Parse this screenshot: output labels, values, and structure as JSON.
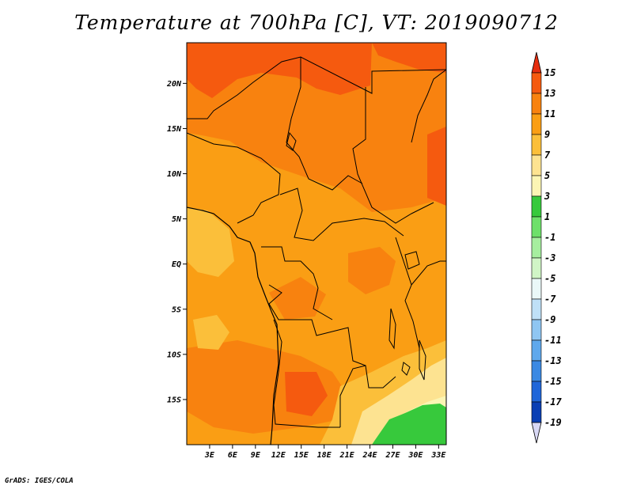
{
  "title": "Temperature at 700hPa [C], VT: 2019090712",
  "footer": "GrADS: IGES/COLA",
  "map": {
    "region": "Central Africa",
    "lat_range": [
      -20,
      24.5
    ],
    "lon_range": [
      0,
      34
    ],
    "lat_ticks": [
      {
        "label": "20N",
        "value": 20
      },
      {
        "label": "15N",
        "value": 15
      },
      {
        "label": "10N",
        "value": 10
      },
      {
        "label": "5N",
        "value": 5
      },
      {
        "label": "EQ",
        "value": 0
      },
      {
        "label": "5S",
        "value": -5
      },
      {
        "label": "10S",
        "value": -10
      },
      {
        "label": "15S",
        "value": -15
      }
    ],
    "lon_ticks": [
      {
        "label": "3E",
        "value": 3
      },
      {
        "label": "6E",
        "value": 6
      },
      {
        "label": "9E",
        "value": 9
      },
      {
        "label": "12E",
        "value": 12
      },
      {
        "label": "15E",
        "value": 15
      },
      {
        "label": "18E",
        "value": 18
      },
      {
        "label": "21E",
        "value": 21
      },
      {
        "label": "24E",
        "value": 24
      },
      {
        "label": "27E",
        "value": 27
      },
      {
        "label": "30E",
        "value": 30
      },
      {
        "label": "33E",
        "value": 33
      }
    ]
  },
  "colorbar": {
    "levels": [
      {
        "label": "15",
        "value": 15
      },
      {
        "label": "13",
        "value": 13
      },
      {
        "label": "11",
        "value": 11
      },
      {
        "label": "9",
        "value": 9
      },
      {
        "label": "7",
        "value": 7
      },
      {
        "label": "5",
        "value": 5
      },
      {
        "label": "3",
        "value": 3
      },
      {
        "label": "1",
        "value": 1
      },
      {
        "label": "-1",
        "value": -1
      },
      {
        "label": "-3",
        "value": -3
      },
      {
        "label": "-5",
        "value": -5
      },
      {
        "label": "-7",
        "value": -7
      },
      {
        "label": "-9",
        "value": -9
      },
      {
        "label": "-11",
        "value": -11
      },
      {
        "label": "-13",
        "value": -13
      },
      {
        "label": "-15",
        "value": -15
      },
      {
        "label": "-17",
        "value": -17
      },
      {
        "label": "-19",
        "value": -19
      }
    ],
    "colors": [
      "#e62e0f",
      "#f55a0f",
      "#f8820f",
      "#fa9e14",
      "#fbbf3a",
      "#fde391",
      "#fbf5b4",
      "#37c93c",
      "#6ee06a",
      "#a6ee9f",
      "#d0f5c6",
      "#eaf8f8",
      "#bfe0f7",
      "#8fc6f2",
      "#5fa8ec",
      "#3b89e3",
      "#1f66d9",
      "#0a3fb4",
      "#08117a",
      "#d8d8f5"
    ]
  }
}
